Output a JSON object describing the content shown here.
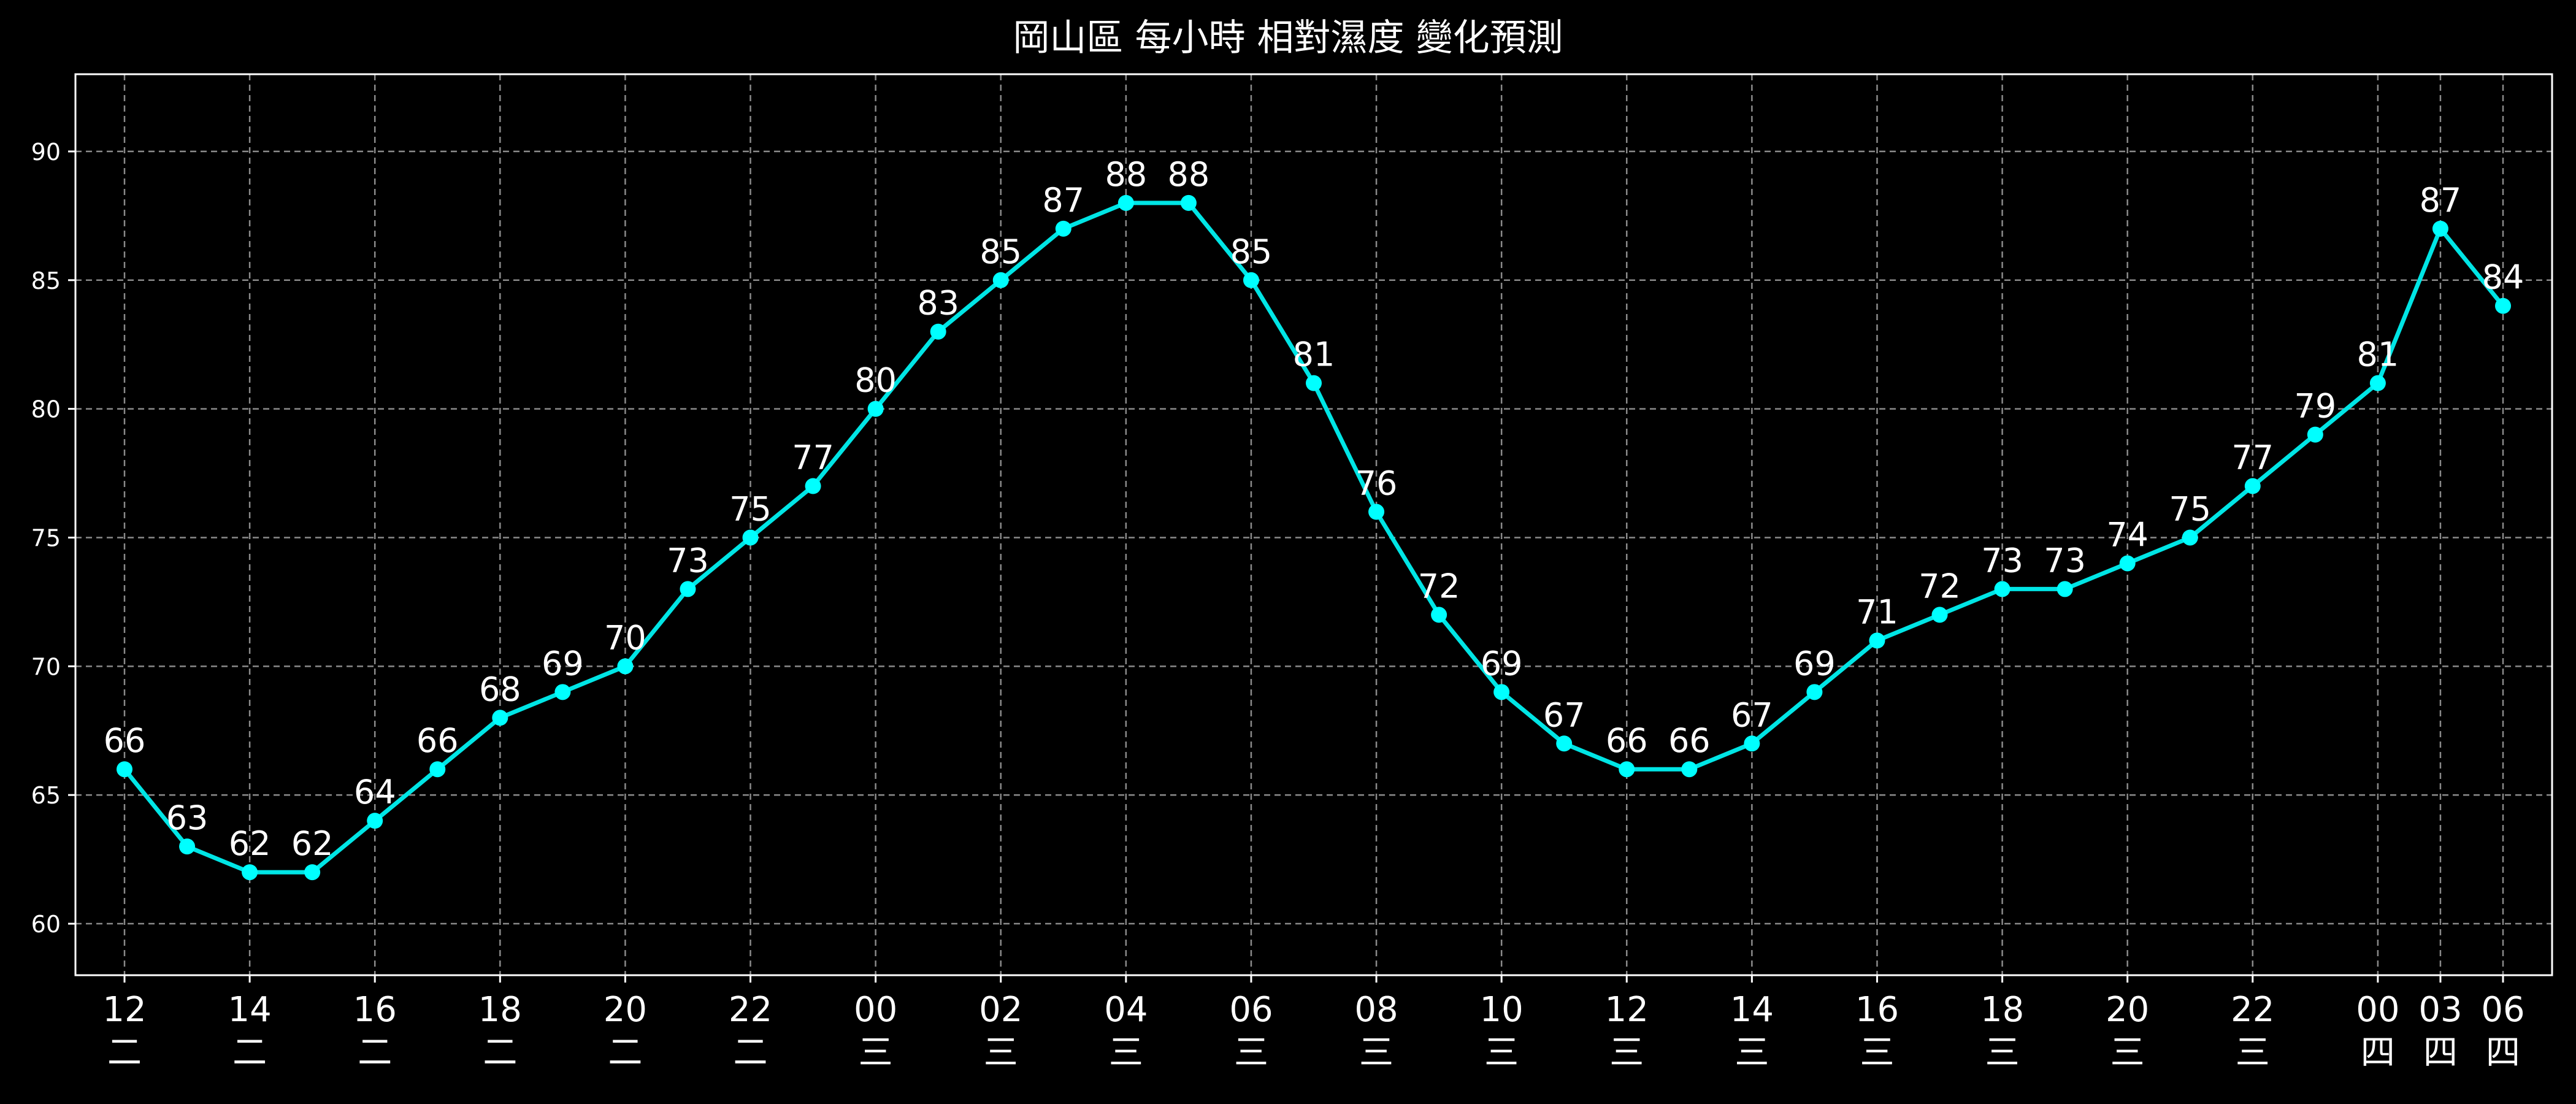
{
  "chart_data": {
    "type": "line",
    "title": "岡山區 每小時 相對濕度 變化預測",
    "xlabel": "",
    "ylabel": "",
    "ylim": [
      58,
      93
    ],
    "yticks": [
      60,
      65,
      70,
      75,
      80,
      85,
      90
    ],
    "grid": true,
    "legend": "none",
    "colors": {
      "background": "#000000",
      "line": "#00e5e5",
      "marker": "#00ffff",
      "text": "#ffffff",
      "grid": "#8a8a8a",
      "axes": "#ffffff"
    },
    "x_ticks": [
      {
        "i": 0,
        "hour": "12",
        "day": "二"
      },
      {
        "i": 2,
        "hour": "14",
        "day": "二"
      },
      {
        "i": 4,
        "hour": "16",
        "day": "二"
      },
      {
        "i": 6,
        "hour": "18",
        "day": "二"
      },
      {
        "i": 8,
        "hour": "20",
        "day": "二"
      },
      {
        "i": 10,
        "hour": "22",
        "day": "二"
      },
      {
        "i": 12,
        "hour": "00",
        "day": "三"
      },
      {
        "i": 14,
        "hour": "02",
        "day": "三"
      },
      {
        "i": 16,
        "hour": "04",
        "day": "三"
      },
      {
        "i": 18,
        "hour": "06",
        "day": "三"
      },
      {
        "i": 20,
        "hour": "08",
        "day": "三"
      },
      {
        "i": 22,
        "hour": "10",
        "day": "三"
      },
      {
        "i": 24,
        "hour": "12",
        "day": "三"
      },
      {
        "i": 26,
        "hour": "14",
        "day": "三"
      },
      {
        "i": 28,
        "hour": "16",
        "day": "三"
      },
      {
        "i": 30,
        "hour": "18",
        "day": "三"
      },
      {
        "i": 32,
        "hour": "20",
        "day": "三"
      },
      {
        "i": 34,
        "hour": "22",
        "day": "三"
      },
      {
        "i": 36,
        "hour": "00",
        "day": "四"
      },
      {
        "i": 37,
        "hour": "03",
        "day": "四"
      },
      {
        "i": 38,
        "hour": "06",
        "day": "四"
      }
    ],
    "values": [
      66,
      63,
      62,
      62,
      64,
      66,
      68,
      69,
      70,
      73,
      75,
      77,
      80,
      83,
      85,
      87,
      88,
      88,
      85,
      81,
      76,
      72,
      69,
      67,
      66,
      66,
      67,
      69,
      71,
      72,
      73,
      73,
      74,
      75,
      77,
      79,
      81,
      87,
      84
    ]
  }
}
